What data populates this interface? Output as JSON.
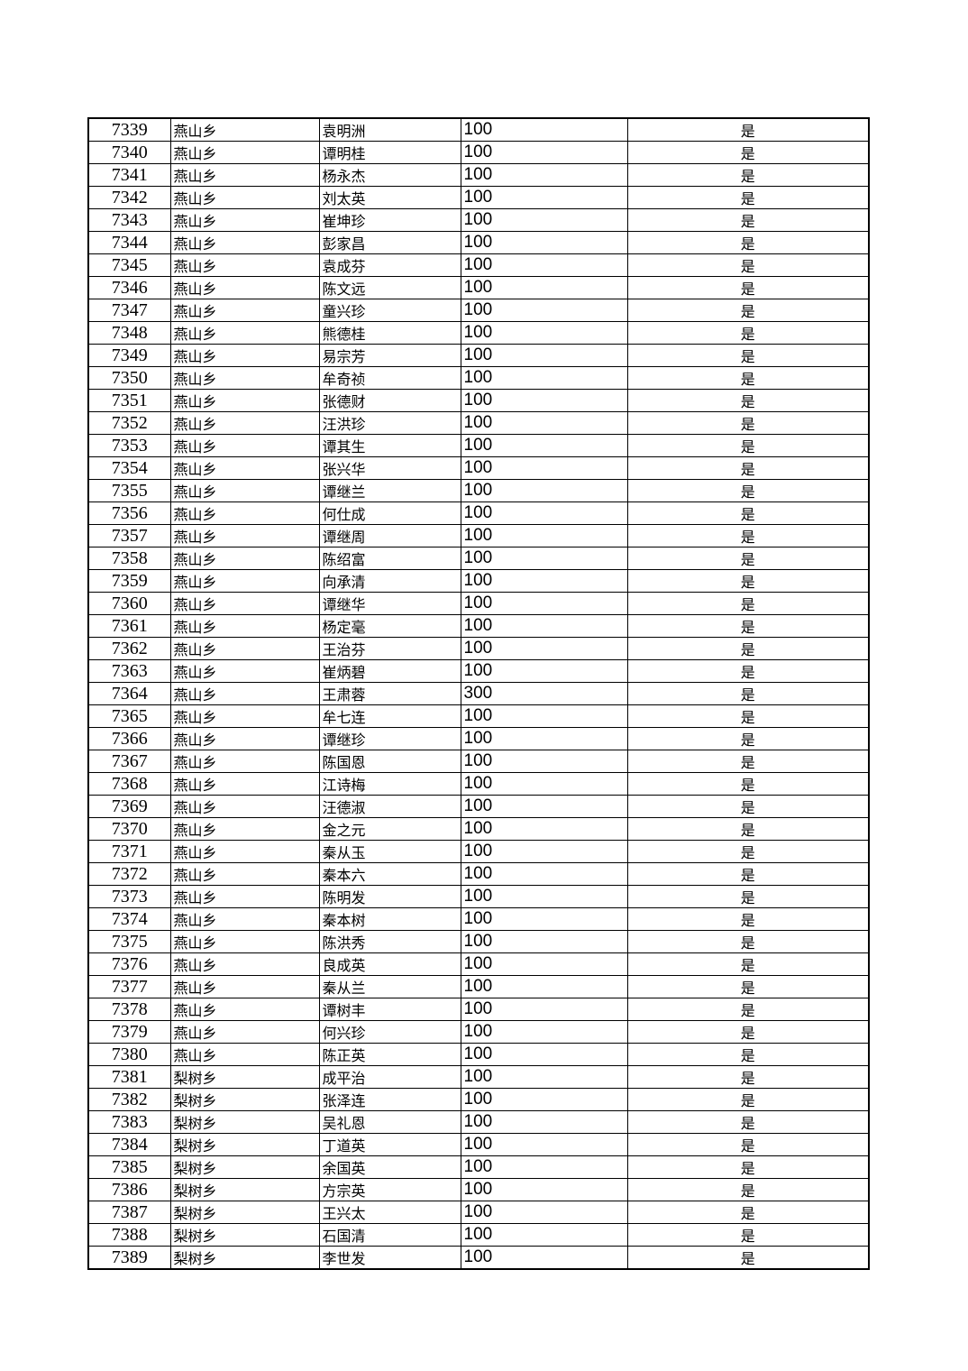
{
  "page": {
    "background_color": "#ffffff"
  },
  "table": {
    "border_color": "#000000",
    "text_color": "#000000",
    "columns": [
      {
        "name": "serial-number",
        "align": "center"
      },
      {
        "name": "township",
        "align": "left"
      },
      {
        "name": "person-name",
        "align": "left"
      },
      {
        "name": "amount",
        "align": "left"
      },
      {
        "name": "confirmed",
        "align": "center"
      }
    ],
    "rows": [
      [
        "7339",
        "燕山乡",
        "袁明洲",
        "100",
        "是"
      ],
      [
        "7340",
        "燕山乡",
        "谭明桂",
        "100",
        "是"
      ],
      [
        "7341",
        "燕山乡",
        "杨永杰",
        "100",
        "是"
      ],
      [
        "7342",
        "燕山乡",
        "刘太英",
        "100",
        "是"
      ],
      [
        "7343",
        "燕山乡",
        "崔坤珍",
        "100",
        "是"
      ],
      [
        "7344",
        "燕山乡",
        "彭家昌",
        "100",
        "是"
      ],
      [
        "7345",
        "燕山乡",
        "袁成芬",
        "100",
        "是"
      ],
      [
        "7346",
        "燕山乡",
        "陈文远",
        "100",
        "是"
      ],
      [
        "7347",
        "燕山乡",
        "童兴珍",
        "100",
        "是"
      ],
      [
        "7348",
        "燕山乡",
        "熊德桂",
        "100",
        "是"
      ],
      [
        "7349",
        "燕山乡",
        "易宗芳",
        "100",
        "是"
      ],
      [
        "7350",
        "燕山乡",
        "牟奇祯",
        "100",
        "是"
      ],
      [
        "7351",
        "燕山乡",
        "张德财",
        "100",
        "是"
      ],
      [
        "7352",
        "燕山乡",
        "汪洪珍",
        "100",
        "是"
      ],
      [
        "7353",
        "燕山乡",
        "谭其生",
        "100",
        "是"
      ],
      [
        "7354",
        "燕山乡",
        "张兴华",
        "100",
        "是"
      ],
      [
        "7355",
        "燕山乡",
        "谭继兰",
        "100",
        "是"
      ],
      [
        "7356",
        "燕山乡",
        "何仕成",
        "100",
        "是"
      ],
      [
        "7357",
        "燕山乡",
        "谭继周",
        "100",
        "是"
      ],
      [
        "7358",
        "燕山乡",
        "陈绍富",
        "100",
        "是"
      ],
      [
        "7359",
        "燕山乡",
        "向承清",
        "100",
        "是"
      ],
      [
        "7360",
        "燕山乡",
        "谭继华",
        "100",
        "是"
      ],
      [
        "7361",
        "燕山乡",
        "杨定毫",
        "100",
        "是"
      ],
      [
        "7362",
        "燕山乡",
        "王治芬",
        "100",
        "是"
      ],
      [
        "7363",
        "燕山乡",
        "崔炳碧",
        "100",
        "是"
      ],
      [
        "7364",
        "燕山乡",
        "王肃蓉",
        "300",
        "是"
      ],
      [
        "7365",
        "燕山乡",
        "牟七连",
        "100",
        "是"
      ],
      [
        "7366",
        "燕山乡",
        "谭继珍",
        "100",
        "是"
      ],
      [
        "7367",
        "燕山乡",
        "陈国恩",
        "100",
        "是"
      ],
      [
        "7368",
        "燕山乡",
        "江诗梅",
        "100",
        "是"
      ],
      [
        "7369",
        "燕山乡",
        "汪德淑",
        "100",
        "是"
      ],
      [
        "7370",
        "燕山乡",
        "金之元",
        "100",
        "是"
      ],
      [
        "7371",
        "燕山乡",
        "秦从玉",
        "100",
        "是"
      ],
      [
        "7372",
        "燕山乡",
        "秦本六",
        "100",
        "是"
      ],
      [
        "7373",
        "燕山乡",
        "陈明发",
        "100",
        "是"
      ],
      [
        "7374",
        "燕山乡",
        "秦本树",
        "100",
        "是"
      ],
      [
        "7375",
        "燕山乡",
        "陈洪秀",
        "100",
        "是"
      ],
      [
        "7376",
        "燕山乡",
        "良成英",
        "100",
        "是"
      ],
      [
        "7377",
        "燕山乡",
        "秦从兰",
        "100",
        "是"
      ],
      [
        "7378",
        "燕山乡",
        "谭树丰",
        "100",
        "是"
      ],
      [
        "7379",
        "燕山乡",
        "何兴珍",
        "100",
        "是"
      ],
      [
        "7380",
        "燕山乡",
        "陈正英",
        "100",
        "是"
      ],
      [
        "7381",
        "梨树乡",
        "成平治",
        "100",
        "是"
      ],
      [
        "7382",
        "梨树乡",
        "张泽连",
        "100",
        "是"
      ],
      [
        "7383",
        "梨树乡",
        "吴礼恩",
        "100",
        "是"
      ],
      [
        "7384",
        "梨树乡",
        "丁道英",
        "100",
        "是"
      ],
      [
        "7385",
        "梨树乡",
        "余国英",
        "100",
        "是"
      ],
      [
        "7386",
        "梨树乡",
        "方宗英",
        "100",
        "是"
      ],
      [
        "7387",
        "梨树乡",
        "王兴太",
        "100",
        "是"
      ],
      [
        "7388",
        "梨树乡",
        "石国清",
        "100",
        "是"
      ],
      [
        "7389",
        "梨树乡",
        "李世发",
        "100",
        "是"
      ]
    ]
  }
}
